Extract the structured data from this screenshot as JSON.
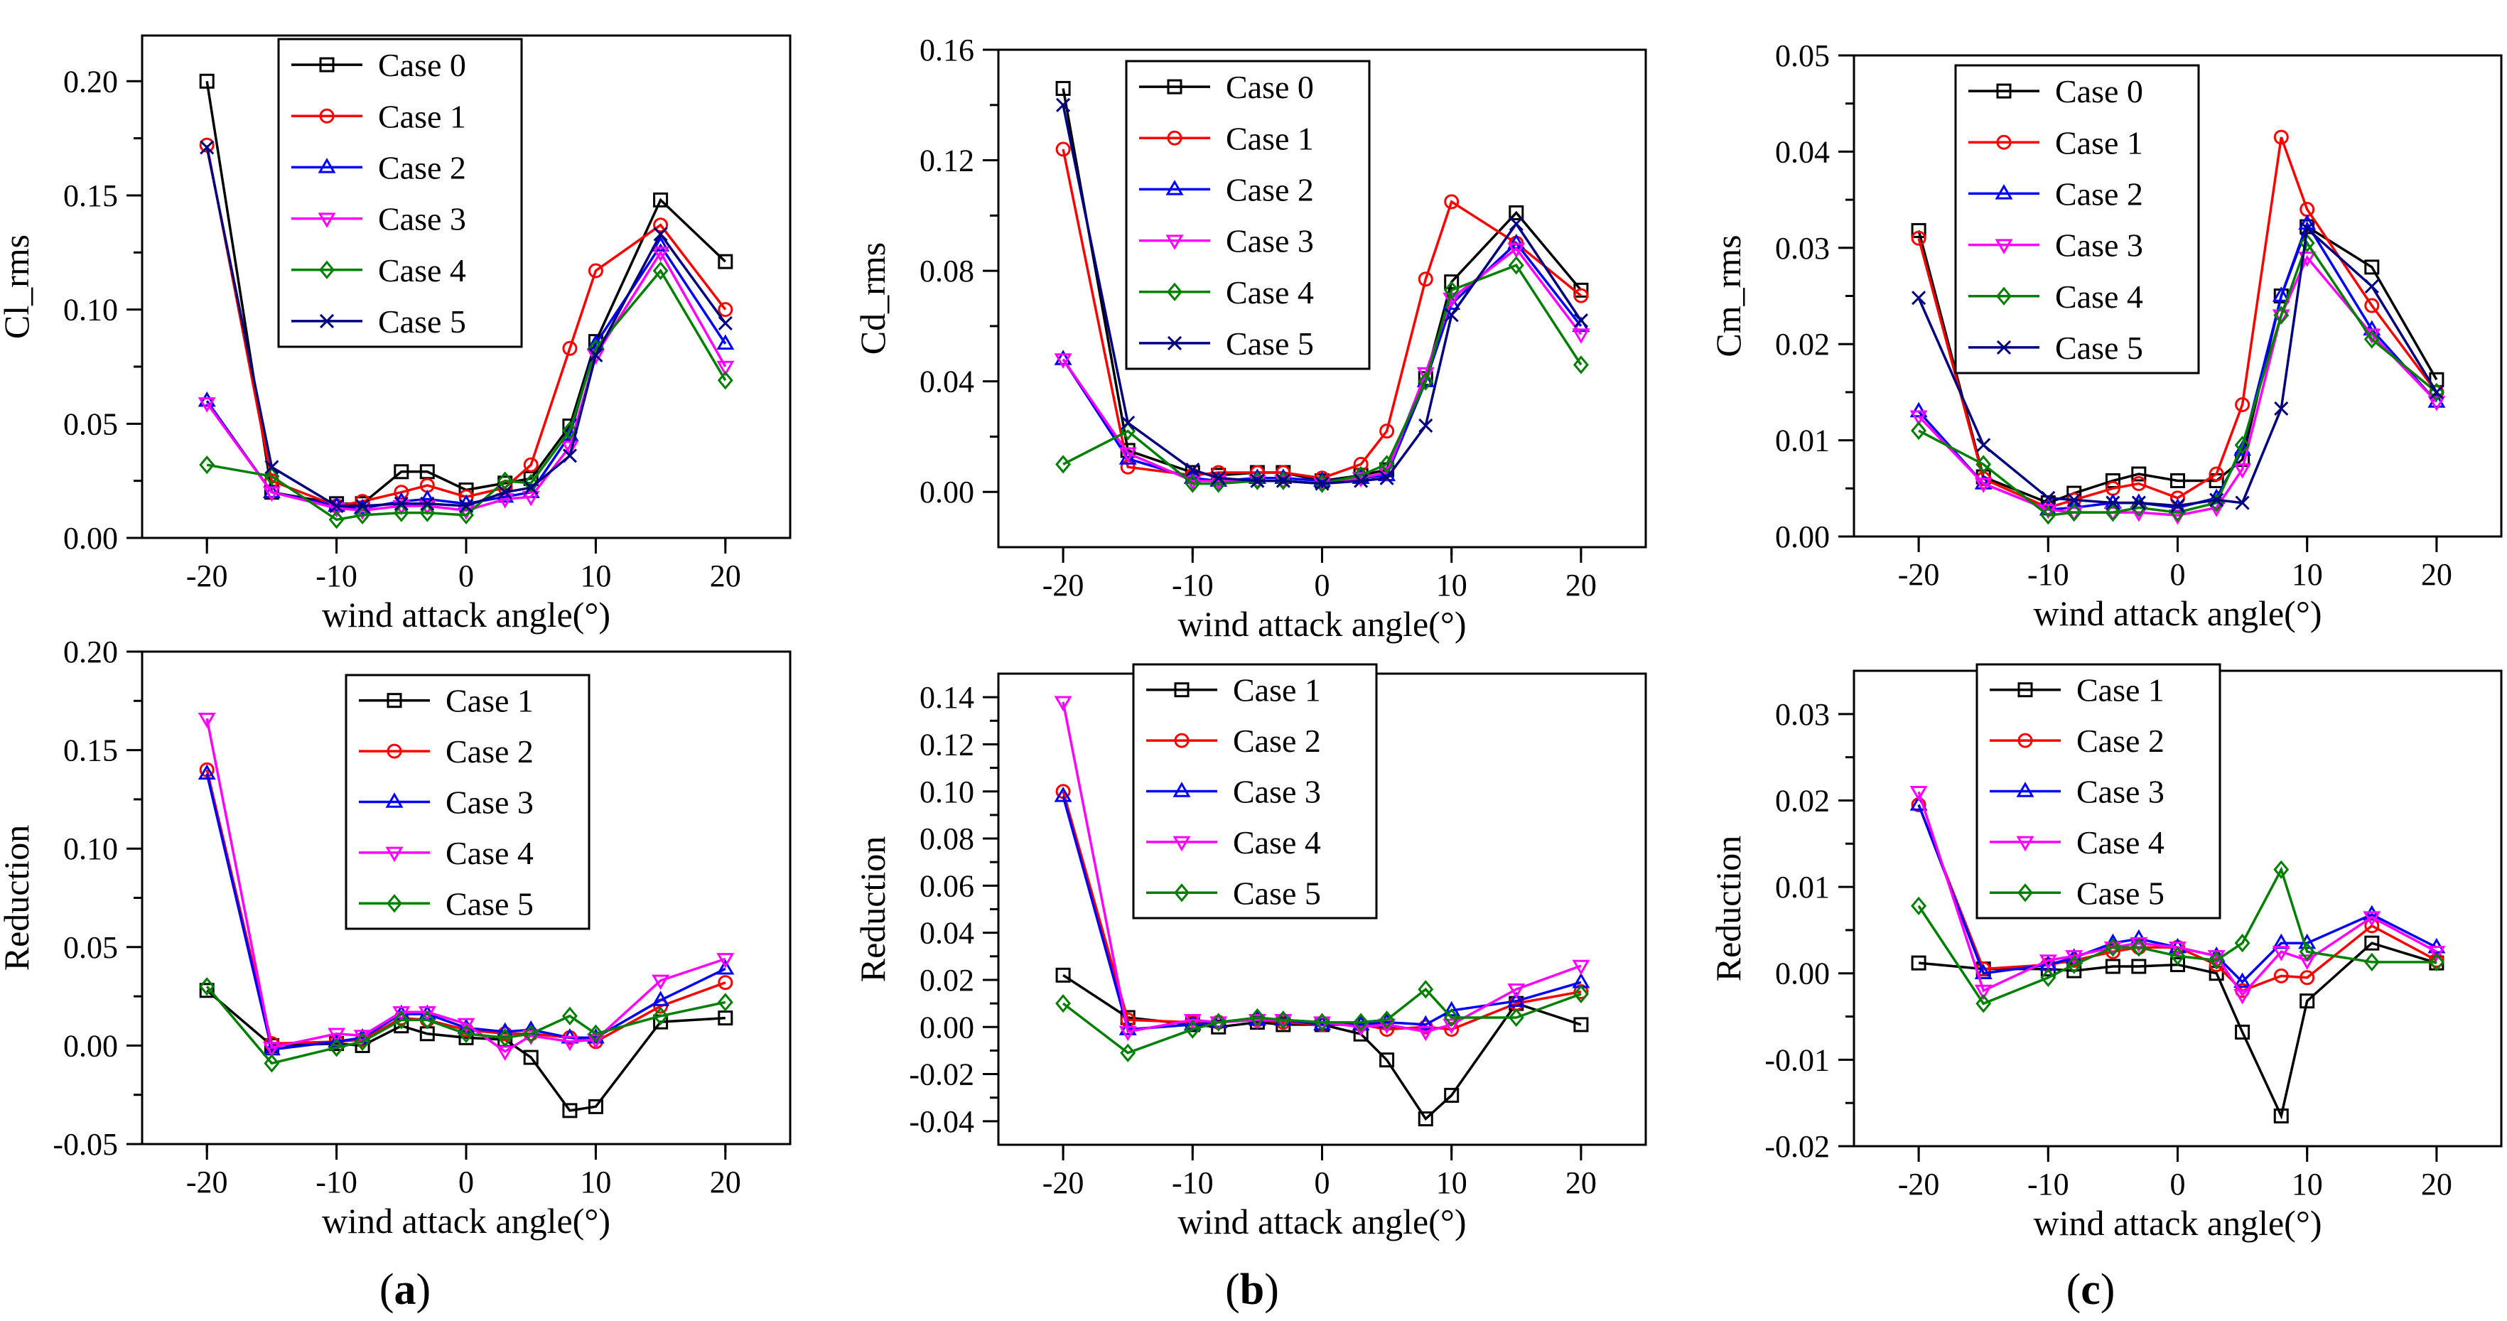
{
  "panel_labels": [
    "(a)",
    "(b)",
    "(c)"
  ],
  "chart_data": [
    {
      "type": "line",
      "id": "cl-rms",
      "ylabel": "Cl_rms",
      "xlabel": "wind attack angle(°)",
      "xlim": [
        -25,
        25
      ],
      "ylim": [
        0,
        0.22
      ],
      "xticks": [
        -20,
        -10,
        0,
        10,
        20
      ],
      "yticks": [
        0.0,
        0.05,
        0.1,
        0.15,
        0.2
      ],
      "ytick_labels": [
        "0.00",
        "0.05",
        "0.10",
        "0.15",
        "0.20"
      ],
      "legend_position": "top-center",
      "x": [
        -20,
        -15,
        -10,
        -8,
        -5,
        -3,
        0,
        3,
        5,
        8,
        10,
        15,
        20
      ],
      "series": [
        {
          "name": "Case 0",
          "color": "#000000",
          "marker": "square",
          "values": [
            0.2,
            0.02,
            0.015,
            0.015,
            0.029,
            0.029,
            0.021,
            0.024,
            0.026,
            0.049,
            0.086,
            0.148,
            0.121
          ]
        },
        {
          "name": "Case 1",
          "color": "#ff0000",
          "marker": "circle",
          "values": [
            0.172,
            0.025,
            0.014,
            0.016,
            0.02,
            0.023,
            0.018,
            0.022,
            0.032,
            0.083,
            0.117,
            0.137,
            0.1
          ]
        },
        {
          "name": "Case 2",
          "color": "#0000ff",
          "marker": "triangle-up",
          "values": [
            0.06,
            0.02,
            0.014,
            0.013,
            0.016,
            0.017,
            0.015,
            0.018,
            0.02,
            0.045,
            0.085,
            0.128,
            0.085
          ]
        },
        {
          "name": "Case 3",
          "color": "#ff00ff",
          "marker": "triangle-down",
          "values": [
            0.059,
            0.02,
            0.013,
            0.012,
            0.014,
            0.014,
            0.012,
            0.017,
            0.018,
            0.04,
            0.08,
            0.125,
            0.075
          ]
        },
        {
          "name": "Case 4",
          "color": "#008000",
          "marker": "diamond",
          "values": [
            0.032,
            0.027,
            0.008,
            0.01,
            0.011,
            0.011,
            0.01,
            0.025,
            0.024,
            0.047,
            0.083,
            0.117,
            0.069
          ]
        },
        {
          "name": "Case 5",
          "color": "#000080",
          "marker": "x",
          "values": [
            0.171,
            0.031,
            0.014,
            0.014,
            0.015,
            0.015,
            0.014,
            0.02,
            0.022,
            0.036,
            0.08,
            0.133,
            0.094
          ]
        }
      ]
    },
    {
      "type": "line",
      "id": "cd-rms",
      "ylabel": "Cd_rms",
      "xlabel": "wind attack angle(°)",
      "xlim": [
        -25,
        25
      ],
      "ylim": [
        -0.02,
        0.16
      ],
      "xticks": [
        -20,
        -10,
        0,
        10,
        20
      ],
      "yticks": [
        0.0,
        0.04,
        0.08,
        0.12,
        0.16
      ],
      "ytick_labels": [
        "0.00",
        "0.04",
        "0.08",
        "0.12",
        "0.16"
      ],
      "legend_position": "top-center",
      "x": [
        -20,
        -15,
        -10,
        -8,
        -5,
        -3,
        0,
        3,
        5,
        8,
        10,
        15,
        20
      ],
      "series": [
        {
          "name": "Case 0",
          "color": "#000000",
          "marker": "square",
          "values": [
            0.146,
            0.015,
            0.007,
            0.006,
            0.007,
            0.007,
            0.004,
            0.006,
            0.008,
            0.041,
            0.076,
            0.101,
            0.073
          ]
        },
        {
          "name": "Case 1",
          "color": "#ff0000",
          "marker": "circle",
          "values": [
            0.124,
            0.009,
            0.006,
            0.007,
            0.007,
            0.007,
            0.005,
            0.01,
            0.022,
            0.077,
            0.105,
            0.09,
            0.071
          ]
        },
        {
          "name": "Case 2",
          "color": "#0000ff",
          "marker": "triangle-up",
          "values": [
            0.048,
            0.012,
            0.005,
            0.004,
            0.005,
            0.005,
            0.004,
            0.005,
            0.006,
            0.04,
            0.068,
            0.09,
            0.06
          ]
        },
        {
          "name": "Case 3",
          "color": "#ff00ff",
          "marker": "triangle-down",
          "values": [
            0.048,
            0.014,
            0.004,
            0.004,
            0.004,
            0.004,
            0.003,
            0.005,
            0.007,
            0.043,
            0.07,
            0.088,
            0.057
          ]
        },
        {
          "name": "Case 4",
          "color": "#008000",
          "marker": "diamond",
          "values": [
            0.01,
            0.022,
            0.003,
            0.003,
            0.004,
            0.004,
            0.003,
            0.006,
            0.01,
            0.04,
            0.073,
            0.082,
            0.046
          ]
        },
        {
          "name": "Case 5",
          "color": "#000080",
          "marker": "x",
          "values": [
            0.14,
            0.025,
            0.008,
            0.005,
            0.004,
            0.004,
            0.003,
            0.004,
            0.005,
            0.024,
            0.064,
            0.097,
            0.062
          ]
        }
      ]
    },
    {
      "type": "line",
      "id": "cm-rms",
      "ylabel": "Cm_rms",
      "xlabel": "wind attack angle(°)",
      "xlim": [
        -25,
        25
      ],
      "ylim": [
        0,
        0.05
      ],
      "xticks": [
        -20,
        -10,
        0,
        10,
        20
      ],
      "yticks": [
        0.0,
        0.01,
        0.02,
        0.03,
        0.04,
        0.05
      ],
      "ytick_labels": [
        "0.00",
        "0.01",
        "0.02",
        "0.03",
        "0.04",
        "0.05"
      ],
      "legend_position": "top-center",
      "x": [
        -20,
        -15,
        -10,
        -8,
        -5,
        -3,
        0,
        3,
        5,
        8,
        10,
        15,
        20
      ],
      "series": [
        {
          "name": "Case 0",
          "color": "#000000",
          "marker": "square",
          "values": [
            0.0318,
            0.0062,
            0.0035,
            0.0045,
            0.0058,
            0.0065,
            0.0058,
            0.0058,
            0.008,
            0.025,
            0.0322,
            0.028,
            0.0163
          ]
        },
        {
          "name": "Case 1",
          "color": "#ff0000",
          "marker": "circle",
          "values": [
            0.031,
            0.006,
            0.003,
            0.0038,
            0.005,
            0.0055,
            0.004,
            0.0065,
            0.0137,
            0.0415,
            0.034,
            0.024,
            0.015
          ]
        },
        {
          "name": "Case 2",
          "color": "#0000ff",
          "marker": "triangle-up",
          "values": [
            0.013,
            0.0055,
            0.0028,
            0.003,
            0.0035,
            0.0035,
            0.003,
            0.004,
            0.009,
            0.025,
            0.0325,
            0.0215,
            0.014
          ]
        },
        {
          "name": "Case 3",
          "color": "#ff00ff",
          "marker": "triangle-down",
          "values": [
            0.0125,
            0.0055,
            0.0028,
            0.0025,
            0.0025,
            0.0025,
            0.0022,
            0.003,
            0.007,
            0.023,
            0.029,
            0.021,
            0.014
          ]
        },
        {
          "name": "Case 4",
          "color": "#008000",
          "marker": "diamond",
          "values": [
            0.011,
            0.0075,
            0.0022,
            0.0025,
            0.0025,
            0.003,
            0.0025,
            0.0035,
            0.0095,
            0.023,
            0.0305,
            0.0205,
            0.015
          ]
        },
        {
          "name": "Case 5",
          "color": "#000080",
          "marker": "x",
          "values": [
            0.0248,
            0.0095,
            0.004,
            0.0038,
            0.0035,
            0.0035,
            0.0032,
            0.0038,
            0.0035,
            0.0133,
            0.032,
            0.026,
            0.015
          ]
        }
      ]
    },
    {
      "type": "line",
      "id": "cl-reduction",
      "ylabel": "Reduction",
      "xlabel": "wind attack angle(°)",
      "xlim": [
        -25,
        25
      ],
      "ylim": [
        -0.05,
        0.2
      ],
      "xticks": [
        -20,
        -10,
        0,
        10,
        20
      ],
      "yticks": [
        -0.05,
        0.0,
        0.05,
        0.1,
        0.15,
        0.2
      ],
      "ytick_labels": [
        "-0.05",
        "0.00",
        "0.05",
        "0.10",
        "0.15",
        "0.20"
      ],
      "legend_position": "top-center",
      "x": [
        -20,
        -15,
        -10,
        -8,
        -5,
        -3,
        0,
        3,
        5,
        8,
        10,
        15,
        20
      ],
      "series": [
        {
          "name": "Case 1",
          "color": "#000000",
          "marker": "square",
          "values": [
            0.028,
            0.0,
            0.001,
            0.0,
            0.01,
            0.006,
            0.004,
            0.003,
            -0.006,
            -0.033,
            -0.031,
            0.012,
            0.014
          ]
        },
        {
          "name": "Case 2",
          "color": "#ff0000",
          "marker": "circle",
          "values": [
            0.14,
            0.001,
            0.002,
            0.003,
            0.014,
            0.013,
            0.008,
            0.006,
            0.006,
            0.004,
            0.002,
            0.02,
            0.032
          ]
        },
        {
          "name": "Case 3",
          "color": "#0000ff",
          "marker": "triangle-up",
          "values": [
            0.138,
            -0.002,
            0.002,
            0.004,
            0.016,
            0.016,
            0.009,
            0.007,
            0.008,
            0.004,
            0.004,
            0.023,
            0.039
          ]
        },
        {
          "name": "Case 4",
          "color": "#ff00ff",
          "marker": "triangle-down",
          "values": [
            0.166,
            -0.001,
            0.006,
            0.005,
            0.017,
            0.017,
            0.011,
            -0.003,
            0.005,
            0.002,
            0.003,
            0.033,
            0.044
          ]
        },
        {
          "name": "Case 5",
          "color": "#008000",
          "marker": "diamond",
          "values": [
            0.03,
            -0.009,
            -0.001,
            0.002,
            0.013,
            0.013,
            0.006,
            0.004,
            0.006,
            0.015,
            0.006,
            0.015,
            0.022
          ]
        }
      ]
    },
    {
      "type": "line",
      "id": "cd-reduction",
      "ylabel": "Reduction",
      "xlabel": "wind attack angle(°)",
      "xlim": [
        -25,
        25
      ],
      "ylim": [
        -0.05,
        0.15
      ],
      "xticks": [
        -20,
        -10,
        0,
        10,
        20
      ],
      "yticks": [
        -0.04,
        -0.02,
        0.0,
        0.02,
        0.04,
        0.06,
        0.08,
        0.1,
        0.12,
        0.14
      ],
      "ytick_labels": [
        "-0.04",
        "-0.02",
        "0.00",
        "0.02",
        "0.04",
        "0.06",
        "0.08",
        "0.10",
        "0.12",
        "0.14"
      ],
      "legend_position": "top-center",
      "x": [
        -20,
        -15,
        -10,
        -8,
        -5,
        -3,
        0,
        3,
        5,
        8,
        10,
        15,
        20
      ],
      "series": [
        {
          "name": "Case 1",
          "color": "#000000",
          "marker": "square",
          "values": [
            0.022,
            0.004,
            0.001,
            0.0,
            0.002,
            0.001,
            0.001,
            -0.003,
            -0.014,
            -0.039,
            -0.029,
            0.01,
            0.001
          ]
        },
        {
          "name": "Case 2",
          "color": "#ff0000",
          "marker": "circle",
          "values": [
            0.1,
            0.003,
            0.002,
            0.002,
            0.003,
            0.002,
            0.001,
            0.001,
            -0.001,
            0.0,
            -0.001,
            0.01,
            0.015
          ]
        },
        {
          "name": "Case 3",
          "color": "#0000ff",
          "marker": "triangle-up",
          "values": [
            0.098,
            -0.001,
            0.001,
            0.002,
            0.003,
            0.003,
            0.001,
            0.001,
            0.002,
            0.001,
            0.007,
            0.011,
            0.019
          ]
        },
        {
          "name": "Case 4",
          "color": "#ff00ff",
          "marker": "triangle-down",
          "values": [
            0.138,
            -0.002,
            0.003,
            0.002,
            0.003,
            0.003,
            0.002,
            0.0,
            0.001,
            -0.002,
            0.001,
            0.016,
            0.026
          ]
        },
        {
          "name": "Case 5",
          "color": "#008000",
          "marker": "diamond",
          "values": [
            0.01,
            -0.011,
            -0.001,
            0.002,
            0.004,
            0.003,
            0.002,
            0.002,
            0.003,
            0.016,
            0.004,
            0.004,
            0.014
          ]
        }
      ]
    },
    {
      "type": "line",
      "id": "cm-reduction",
      "ylabel": "Reduction",
      "xlabel": "wind attack angle(°)",
      "xlim": [
        -25,
        25
      ],
      "ylim": [
        -0.02,
        0.035
      ],
      "xticks": [
        -20,
        -10,
        0,
        10,
        20
      ],
      "yticks": [
        -0.02,
        -0.01,
        0.0,
        0.01,
        0.02,
        0.03
      ],
      "ytick_labels": [
        "-0.02",
        "-0.01",
        "0.00",
        "0.01",
        "0.02",
        "0.03"
      ],
      "legend_position": "top-center",
      "x": [
        -20,
        -15,
        -10,
        -8,
        -5,
        -3,
        0,
        3,
        5,
        8,
        10,
        15,
        20
      ],
      "series": [
        {
          "name": "Case 1",
          "color": "#000000",
          "marker": "square",
          "values": [
            0.0012,
            0.0005,
            0.0005,
            0.0003,
            0.0008,
            0.0008,
            0.001,
            0.0,
            -0.0068,
            -0.0165,
            -0.0032,
            0.0035,
            0.0012
          ]
        },
        {
          "name": "Case 2",
          "color": "#ff0000",
          "marker": "circle",
          "values": [
            0.0195,
            0.0005,
            0.001,
            0.0015,
            0.0025,
            0.003,
            0.003,
            0.001,
            -0.002,
            -0.0003,
            -0.0005,
            0.0055,
            0.0015
          ]
        },
        {
          "name": "Case 3",
          "color": "#0000ff",
          "marker": "triangle-up",
          "values": [
            0.0195,
            0.0,
            0.001,
            0.0018,
            0.0035,
            0.004,
            0.003,
            0.002,
            -0.001,
            0.0035,
            0.0035,
            0.0068,
            0.003
          ]
        },
        {
          "name": "Case 4",
          "color": "#ff00ff",
          "marker": "triangle-down",
          "values": [
            0.021,
            -0.002,
            0.0015,
            0.002,
            0.003,
            0.0035,
            0.003,
            0.002,
            -0.0025,
            0.0025,
            0.0015,
            0.0065,
            0.0025
          ]
        },
        {
          "name": "Case 5",
          "color": "#008000",
          "marker": "diamond",
          "values": [
            0.0078,
            -0.0035,
            -0.0005,
            0.001,
            0.003,
            0.003,
            0.002,
            0.0015,
            0.0035,
            0.012,
            0.0025,
            0.0013,
            0.0013
          ]
        }
      ]
    }
  ]
}
